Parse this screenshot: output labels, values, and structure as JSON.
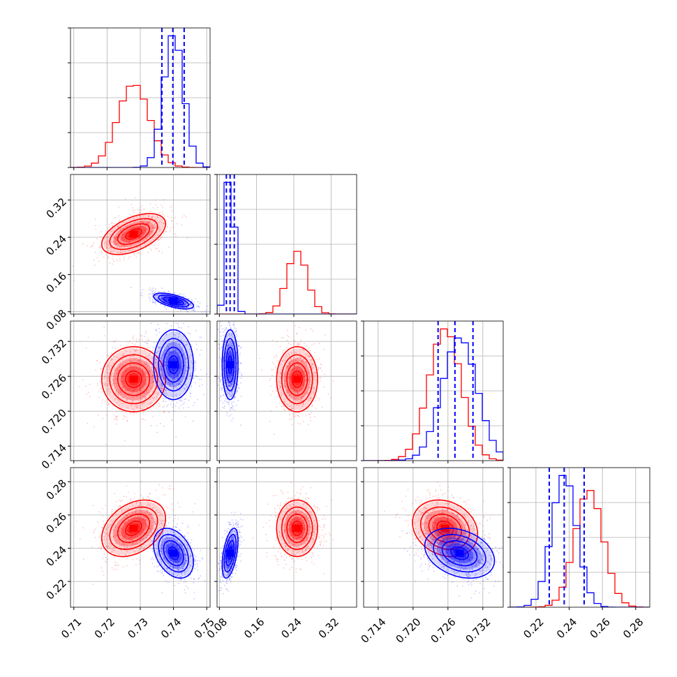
{
  "chart_data": {
    "type": "corner",
    "grid": true,
    "series": [
      {
        "color": "#ff0000",
        "mean": [
          0.728,
          0.247,
          0.7255,
          0.252
        ],
        "sd": [
          0.0048,
          0.022,
          0.0028,
          0.0085
        ],
        "corr": [
          [
            1,
            0.5,
            0.0,
            0.35
          ],
          [
            0.5,
            1,
            0.0,
            0.0
          ],
          [
            0.0,
            0.0,
            1,
            -0.2
          ],
          [
            0.35,
            0.0,
            -0.2,
            1
          ]
        ]
      },
      {
        "color": "#0000ff",
        "mean": [
          0.74,
          0.103,
          0.728,
          0.237
        ],
        "sd": [
          0.003,
          0.0085,
          0.003,
          0.0075
        ],
        "corr": [
          [
            1,
            -0.6,
            0.0,
            -0.35
          ],
          [
            -0.6,
            1,
            0.0,
            0.5
          ],
          [
            0.0,
            0.0,
            1,
            -0.3
          ],
          [
            -0.35,
            0.5,
            -0.3,
            1
          ]
        ]
      }
    ],
    "quantile_lines": [
      [
        0.7365,
        0.7398,
        0.7432
      ],
      [
        0.095,
        0.103,
        0.112
      ],
      [
        0.7243,
        0.7272,
        0.7303
      ],
      [
        0.228,
        0.237,
        0.249
      ]
    ],
    "ranges": [
      [
        0.709,
        0.751
      ],
      [
        0.075,
        0.375
      ],
      [
        0.7115,
        0.7355
      ],
      [
        0.2045,
        0.2885
      ]
    ],
    "ticks": [
      {
        "values": [
          0.71,
          0.72,
          0.73,
          0.74,
          0.75
        ],
        "labels": [
          "0.71",
          "0.72",
          "0.73",
          "0.74",
          "0.75"
        ]
      },
      {
        "values": [
          0.08,
          0.16,
          0.24,
          0.32
        ],
        "labels": [
          "0.08",
          "0.16",
          "0.24",
          "0.32"
        ]
      },
      {
        "values": [
          0.714,
          0.72,
          0.726,
          0.732
        ],
        "labels": [
          "0.714",
          "0.720",
          "0.726",
          "0.732"
        ]
      },
      {
        "values": [
          0.22,
          0.24,
          0.26,
          0.28
        ],
        "labels": [
          "0.22",
          "0.24",
          "0.26",
          "0.28"
        ]
      }
    ],
    "contour_levels": [
      0.5,
      1.0,
      1.5,
      2.0
    ]
  }
}
